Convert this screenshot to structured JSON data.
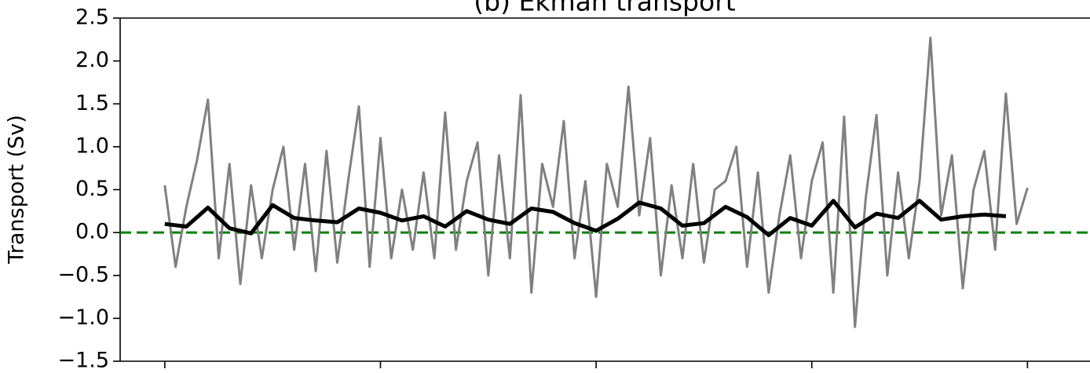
{
  "chart_data": {
    "type": "line",
    "title": "(b) Ekman transport",
    "ylabel": "Transport (Sv)",
    "xlim": [
      -2.07,
      42.9
    ],
    "xticks": [
      0,
      10,
      20,
      30,
      40
    ],
    "ylim": [
      -1.5,
      2.5
    ],
    "yticks": [
      {
        "value": -1.5,
        "label": "−1.5"
      },
      {
        "value": -1.0,
        "label": "−1.0"
      },
      {
        "value": -0.5,
        "label": "−0.5"
      },
      {
        "value": 0,
        "label": "0.0"
      },
      {
        "value": 0.5,
        "label": "0.5"
      },
      {
        "value": 1.0,
        "label": "1.0"
      },
      {
        "value": 1.5,
        "label": "1.5"
      },
      {
        "value": 2.0,
        "label": "2.0"
      },
      {
        "value": 2.5,
        "label": "2.5"
      }
    ],
    "hlines": [
      {
        "y": 0,
        "color": "#008000",
        "style": "dashed"
      }
    ],
    "series": [
      {
        "color": "#808080",
        "width": 3,
        "x": [
          0,
          0.5,
          1,
          1.5,
          2,
          2.5,
          3,
          3.5,
          4,
          4.5,
          5,
          5.5,
          6,
          6.5,
          7,
          7.5,
          8,
          8.5,
          9,
          9.5,
          10,
          10.5,
          11,
          11.5,
          12,
          12.5,
          13,
          13.5,
          14,
          14.5,
          15,
          15.5,
          16,
          16.5,
          17,
          17.5,
          18,
          18.5,
          19,
          19.5,
          20,
          20.5,
          21,
          21.5,
          22,
          22.5,
          23,
          23.5,
          24,
          24.5,
          25,
          25.5,
          26,
          26.5,
          27,
          27.5,
          28,
          28.5,
          29,
          29.5,
          30,
          30.5,
          31,
          31.5,
          32,
          32.5,
          33,
          33.5,
          34,
          34.5,
          35,
          35.5,
          36,
          36.5,
          37,
          37.5,
          38,
          38.5,
          39,
          39.5,
          40
        ],
        "values": [
          0.55,
          -0.4,
          0.3,
          0.85,
          1.55,
          -0.3,
          0.8,
          -0.6,
          0.55,
          -0.3,
          0.5,
          1.0,
          -0.2,
          0.8,
          -0.45,
          0.95,
          -0.35,
          0.6,
          1.47,
          -0.4,
          1.1,
          -0.3,
          0.5,
          -0.2,
          0.7,
          -0.3,
          1.4,
          -0.2,
          0.6,
          1.05,
          -0.5,
          0.9,
          -0.3,
          1.6,
          -0.7,
          0.8,
          0.3,
          1.3,
          -0.3,
          0.6,
          -0.75,
          0.8,
          0.3,
          1.7,
          0.2,
          1.1,
          -0.5,
          0.55,
          -0.3,
          0.8,
          -0.35,
          0.5,
          0.6,
          1.0,
          -0.4,
          0.7,
          -0.7,
          0.2,
          0.9,
          -0.3,
          0.6,
          1.05,
          -0.7,
          1.35,
          -1.1,
          0.4,
          1.37,
          -0.5,
          0.7,
          -0.3,
          0.6,
          2.27,
          0.2,
          0.9,
          -0.65,
          0.5,
          0.95,
          -0.2,
          1.62,
          0.1,
          0.52
        ]
      },
      {
        "color": "#000000",
        "width": 5,
        "x": [
          0,
          1,
          2,
          3,
          4,
          5,
          6,
          7,
          8,
          9,
          10,
          11,
          12,
          13,
          14,
          15,
          16,
          17,
          18,
          19,
          20,
          21,
          22,
          23,
          24,
          25,
          26,
          27,
          28,
          29,
          30,
          31,
          32,
          33,
          34,
          35,
          36,
          37,
          38,
          39
        ],
        "values": [
          0.1,
          0.07,
          0.29,
          0.05,
          -0.01,
          0.32,
          0.17,
          0.14,
          0.12,
          0.28,
          0.23,
          0.14,
          0.19,
          0.07,
          0.25,
          0.15,
          0.1,
          0.28,
          0.24,
          0.11,
          0.02,
          0.16,
          0.35,
          0.28,
          0.08,
          0.11,
          0.3,
          0.18,
          -0.03,
          0.17,
          0.08,
          0.37,
          0.06,
          0.22,
          0.17,
          0.37,
          0.15,
          0.19,
          0.21,
          0.19
        ]
      }
    ]
  }
}
